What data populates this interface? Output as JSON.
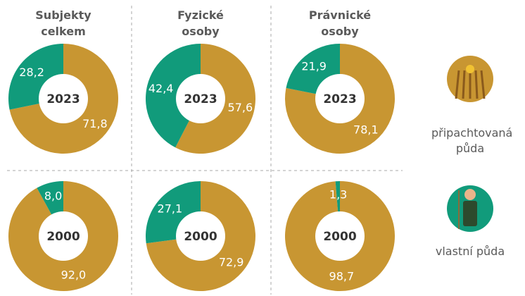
{
  "chart_data": {
    "type": "pie",
    "donut": true,
    "categories": [
      "připachtovaná půda",
      "vlastní půda"
    ],
    "colors": [
      "#c89632",
      "#119b7b"
    ],
    "years": [
      "2023",
      "2000"
    ],
    "series": [
      {
        "name": "Subjekty celkem",
        "values": [
          [
            71.8,
            28.2
          ],
          [
            92.0,
            8.0
          ]
        ],
        "value_labels": [
          [
            "71,8",
            "28,2"
          ],
          [
            "92,0",
            "8,0"
          ]
        ]
      },
      {
        "name": "Fyzické osoby",
        "values": [
          [
            57.6,
            42.4
          ],
          [
            72.9,
            27.1
          ]
        ],
        "value_labels": [
          [
            "57,6",
            "42,4"
          ],
          [
            "72,9",
            "27,1"
          ]
        ]
      },
      {
        "name": "Právnické osoby",
        "values": [
          [
            78.1,
            21.9
          ],
          [
            98.7,
            1.3
          ]
        ],
        "value_labels": [
          [
            "78,1",
            "21,9"
          ],
          [
            "98,7",
            "1,3"
          ]
        ]
      }
    ]
  }
}
